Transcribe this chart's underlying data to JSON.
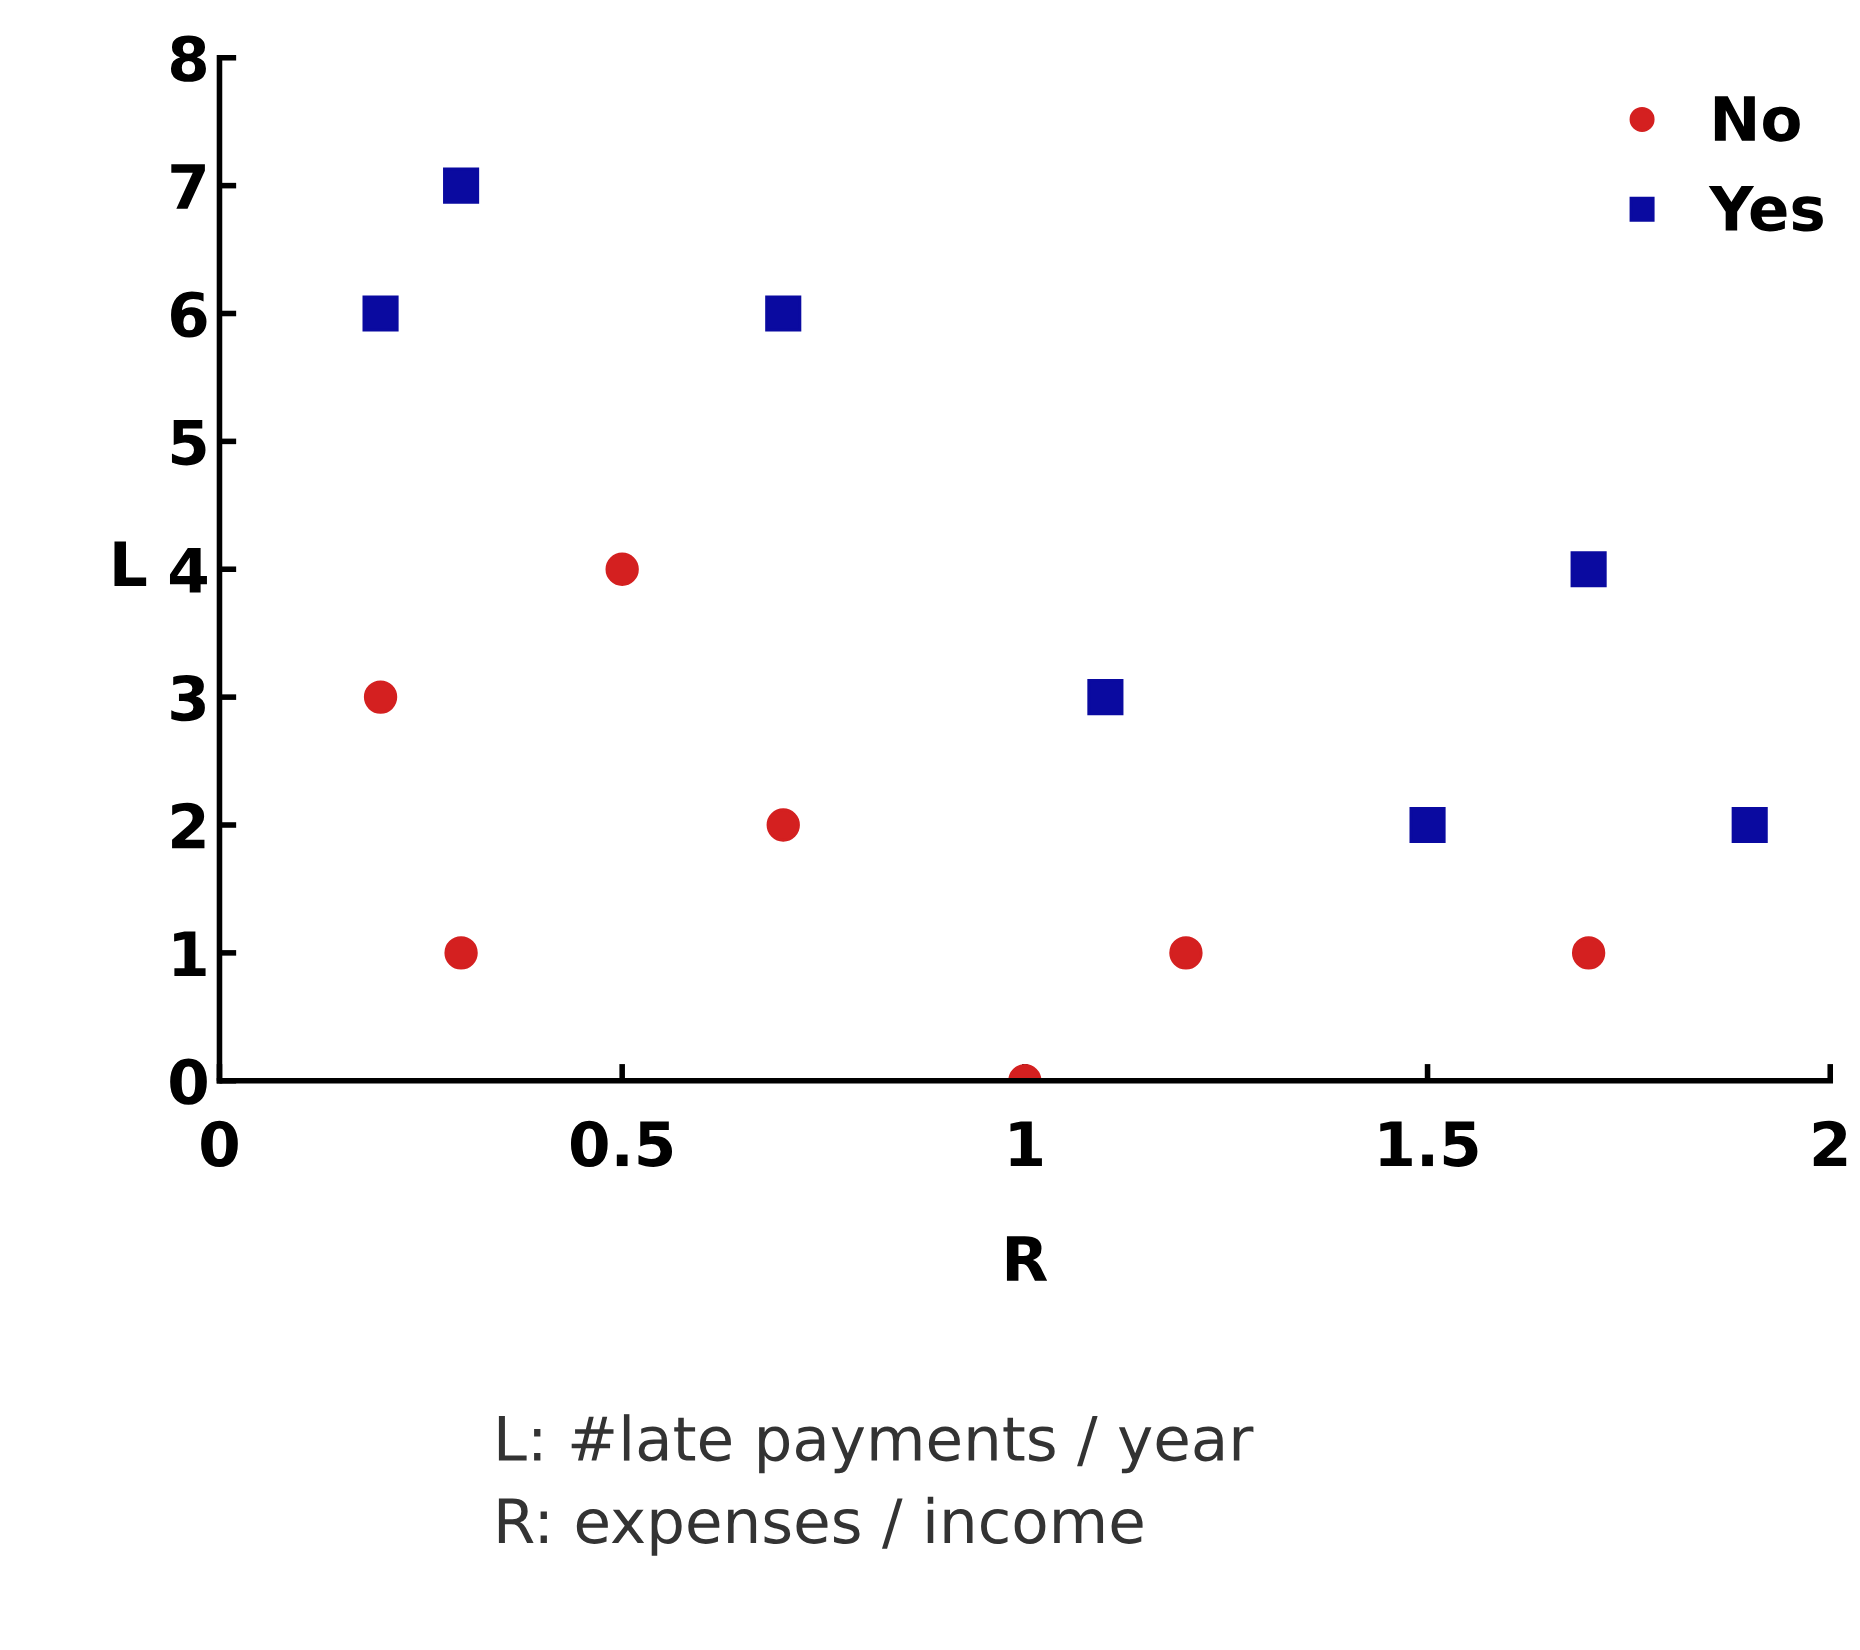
{
  "chart_data": {
    "type": "scatter",
    "xlabel": "R",
    "ylabel": "L",
    "xlim": [
      0,
      2
    ],
    "xticks": [
      0,
      0.5,
      1,
      1.5,
      2
    ],
    "ylim": [
      0,
      8
    ],
    "yticks": [
      0,
      1,
      2,
      3,
      4,
      5,
      6,
      7,
      8
    ],
    "grid": false,
    "legend": "top right",
    "series": [
      {
        "name": "No",
        "color": "#d42020",
        "marker": "circle",
        "x": [
          0.2,
          0.3,
          0.5,
          0.7,
          1.0,
          1.2,
          1.7
        ],
        "values": [
          3,
          1,
          4,
          2,
          0,
          1,
          1
        ]
      },
      {
        "name": "Yes",
        "color": "#0a0aa0",
        "marker": "square",
        "x": [
          0.2,
          0.3,
          0.7,
          1.1,
          1.5,
          1.7,
          1.9
        ],
        "values": [
          6,
          7,
          6,
          3,
          2,
          4,
          2
        ]
      }
    ],
    "annotations": [
      "L: #late payments / year",
      "R: expenses / income"
    ]
  }
}
